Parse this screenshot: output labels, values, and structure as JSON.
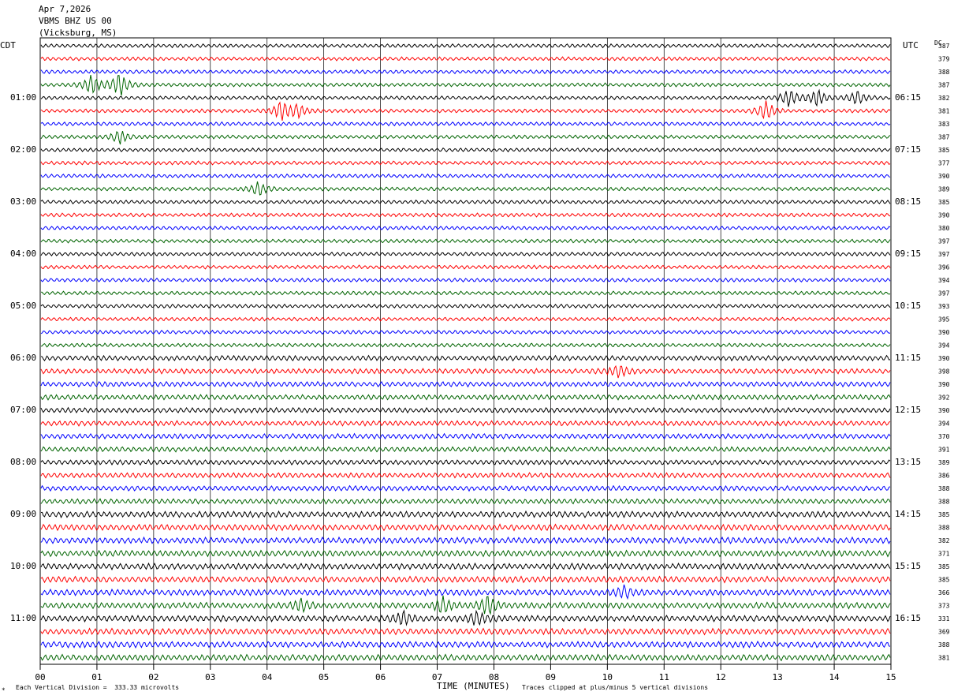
{
  "header": {
    "date": "Apr 7,2026",
    "station": "VBMS BHZ US 00",
    "location": "(Vicksburg, MS)",
    "left_zone": "CDT",
    "right_zone": "UTC",
    "dc_label": "DC"
  },
  "footer": {
    "xlabel": "TIME (MINUTES)",
    "scale_note": "Each Vertical Division =  333.33 microvolts",
    "clip_note": "Traces clipped at plus/minus 5 vertical divisions"
  },
  "colors": {
    "cycle": [
      "#000000",
      "#ff0000",
      "#0000ff",
      "#006400"
    ],
    "grid": "#000000"
  },
  "chart_data": {
    "type": "line",
    "description_type": "helicorder",
    "xlim": [
      0,
      15
    ],
    "x_ticks": [
      "00",
      "01",
      "02",
      "03",
      "04",
      "05",
      "06",
      "07",
      "08",
      "09",
      "10",
      "11",
      "12",
      "13",
      "14",
      "15"
    ],
    "left_time_labels": [
      "01:00",
      "02:00",
      "03:00",
      "04:00",
      "05:00",
      "06:00",
      "07:00",
      "08:00",
      "09:00",
      "10:00",
      "11:00"
    ],
    "right_time_labels": [
      "06:15",
      "07:15",
      "08:15",
      "09:15",
      "10:15",
      "11:15",
      "12:15",
      "13:15",
      "14:15",
      "15:15",
      "16:15"
    ],
    "label_every_n_traces": 4,
    "dc_offsets": [
      "387",
      "379",
      "388",
      "387",
      "382",
      "381",
      "383",
      "387",
      "385",
      "377",
      "390",
      "389",
      "385",
      "390",
      "380",
      "397",
      "397",
      "396",
      "394",
      "397",
      "393",
      "395",
      "390",
      "394",
      "390",
      "398",
      "390",
      "392",
      "390",
      "394",
      "370",
      "391",
      "389",
      "386",
      "388",
      "388",
      "385",
      "388",
      "382",
      "371",
      "385",
      "385",
      "366",
      "373",
      "331",
      "369",
      "388",
      "381"
    ],
    "events": [
      {
        "trace": 3,
        "minute": 0.9,
        "amplitude": 2.2
      },
      {
        "trace": 3,
        "minute": 1.4,
        "amplitude": 2.8
      },
      {
        "trace": 4,
        "minute": 13.2,
        "amplitude": 2.0
      },
      {
        "trace": 4,
        "minute": 13.7,
        "amplitude": 2.0
      },
      {
        "trace": 4,
        "minute": 14.4,
        "amplitude": 1.6
      },
      {
        "trace": 5,
        "minute": 4.25,
        "amplitude": 2.2
      },
      {
        "trace": 5,
        "minute": 4.55,
        "amplitude": 1.4
      },
      {
        "trace": 5,
        "minute": 12.8,
        "amplitude": 2.2
      },
      {
        "trace": 7,
        "minute": 1.4,
        "amplitude": 1.6
      },
      {
        "trace": 11,
        "minute": 3.85,
        "amplitude": 1.6
      },
      {
        "trace": 25,
        "minute": 10.2,
        "amplitude": 1.4
      },
      {
        "trace": 42,
        "minute": 10.3,
        "amplitude": 1.2
      },
      {
        "trace": 43,
        "minute": 4.6,
        "amplitude": 1.4
      },
      {
        "trace": 43,
        "minute": 7.1,
        "amplitude": 1.8
      },
      {
        "trace": 43,
        "minute": 7.9,
        "amplitude": 2.2
      },
      {
        "trace": 44,
        "minute": 6.4,
        "amplitude": 1.4
      },
      {
        "trace": 44,
        "minute": 7.7,
        "amplitude": 1.6
      }
    ]
  }
}
